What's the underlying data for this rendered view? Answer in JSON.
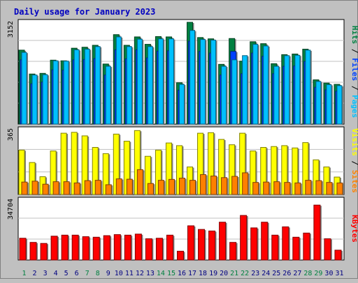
{
  "title": "Daily usage for January 2023",
  "colors": {
    "background": "#c0c0c0",
    "panel": "#ffffff",
    "title": "#0000c0",
    "pages": "#00c0ff",
    "files": "#0040ff",
    "hits": "#008040",
    "visits": "#ffff00",
    "sites": "#ff8000",
    "kbytes": "#ff0000",
    "weekend_day": "#008040",
    "weekday": "#000080"
  },
  "chart_data": [
    {
      "type": "bar",
      "panel": "hits-files-pages",
      "axis_max_label": "3152",
      "legend": [
        "Pages",
        "Files",
        "Hits"
      ],
      "series": [
        {
          "name": "Hits",
          "values": [
            2290,
            1550,
            1570,
            1980,
            1960,
            2350,
            2380,
            2440,
            1860,
            2770,
            2440,
            2700,
            2470,
            2710,
            2700,
            1280,
            3152,
            2680,
            2640,
            1850,
            2650,
            1950,
            2550,
            2490,
            1870,
            2150,
            2170,
            2320,
            1370,
            1270,
            1230
          ]
        },
        {
          "name": "Files",
          "values": [
            1990,
            1250,
            1300,
            1680,
            1670,
            1990,
            2000,
            2030,
            1520,
            2300,
            2020,
            2300,
            2050,
            2260,
            2270,
            1050,
            2570,
            2250,
            2200,
            1520,
            2250,
            1560,
            2200,
            2100,
            1560,
            1790,
            1800,
            1940,
            1140,
            1060,
            1020
          ]
        },
        {
          "name": "Pages",
          "values": [
            2220,
            1520,
            1530,
            1960,
            1950,
            2300,
            2320,
            2400,
            1790,
            2700,
            2400,
            2630,
            2400,
            2640,
            2640,
            1230,
            2900,
            2620,
            2600,
            1790,
            1990,
            2120,
            2470,
            2420,
            1790,
            2120,
            2130,
            2290,
            1320,
            1220,
            1190
          ]
        }
      ]
    },
    {
      "type": "bar",
      "panel": "visits-sites",
      "axis_max_label": "365",
      "legend": [
        "Sites",
        "Visits"
      ],
      "series": [
        {
          "name": "Visits",
          "values": [
            250,
            180,
            100,
            245,
            345,
            350,
            330,
            265,
            230,
            340,
            300,
            360,
            215,
            250,
            290,
            275,
            155,
            345,
            348,
            310,
            280,
            345,
            245,
            265,
            270,
            275,
            262,
            292,
            195,
            155,
            98
          ]
        },
        {
          "name": "Sites",
          "values": [
            70,
            75,
            58,
            72,
            72,
            65,
            78,
            80,
            55,
            88,
            86,
            140,
            62,
            80,
            85,
            92,
            80,
            112,
            104,
            95,
            102,
            122,
            68,
            70,
            72,
            68,
            65,
            80,
            78,
            68,
            65
          ]
        }
      ]
    },
    {
      "type": "bar",
      "panel": "kbytes",
      "axis_max_label": "34704",
      "legend": [
        "KBytes"
      ],
      "series": [
        {
          "name": "KBytes",
          "values": [
            12600,
            10200,
            9600,
            13800,
            14400,
            14400,
            13500,
            13200,
            14100,
            14700,
            14400,
            15000,
            12300,
            12600,
            14400,
            5100,
            19800,
            17700,
            16800,
            21900,
            10200,
            25800,
            18600,
            21900,
            14400,
            19200,
            13200,
            15600,
            31800,
            12300,
            5700
          ]
        }
      ]
    }
  ],
  "days": [
    "1",
    "2",
    "3",
    "4",
    "5",
    "6",
    "7",
    "8",
    "9",
    "10",
    "11",
    "12",
    "13",
    "14",
    "15",
    "16",
    "17",
    "18",
    "19",
    "20",
    "21",
    "22",
    "23",
    "24",
    "25",
    "26",
    "27",
    "28",
    "29",
    "30",
    "31"
  ],
  "weekend_days": [
    "1",
    "7",
    "8",
    "14",
    "15",
    "21",
    "22",
    "28",
    "29"
  ]
}
